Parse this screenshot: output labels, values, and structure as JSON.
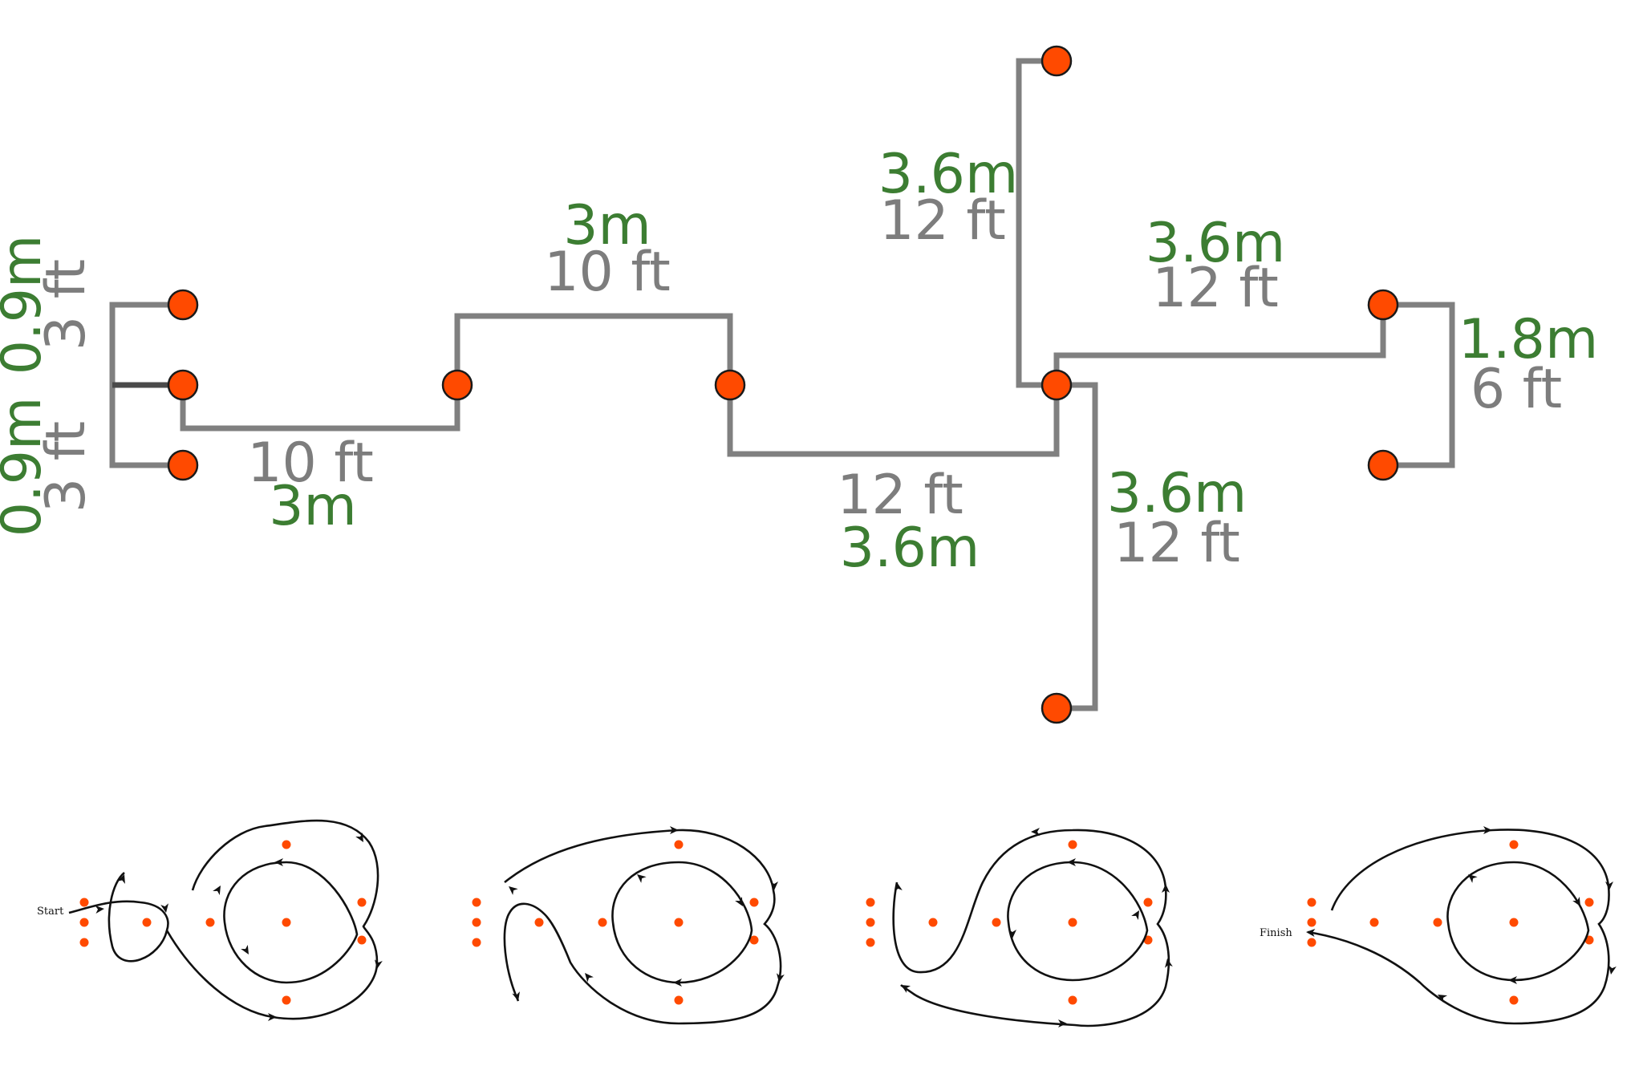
{
  "colors": {
    "metric": "#3c7d32",
    "imperial": "#7d7d7d",
    "cone": "#ff4a00",
    "connector": "#808080",
    "path": "#111111"
  },
  "layout_diagram": {
    "left_upper_gap": {
      "metric": "0.9m",
      "imperial": "3 ft"
    },
    "left_lower_gap": {
      "metric": "0.9m",
      "imperial": "3 ft"
    },
    "first_span": {
      "imperial": "10 ft",
      "metric": "3m"
    },
    "second_span": {
      "metric": "3m",
      "imperial": "10 ft"
    },
    "third_span": {
      "imperial": "12 ft",
      "metric": "3.6m"
    },
    "north_arm": {
      "metric": "3.6m",
      "imperial": "12 ft"
    },
    "east_arm": {
      "metric": "3.6m",
      "imperial": "12 ft"
    },
    "south_arm": {
      "metric": "3.6m",
      "imperial": "12 ft"
    },
    "right_pair_gap": {
      "metric": "1.8m",
      "imperial": "6 ft"
    }
  },
  "route_steps": {
    "start_label": "Start",
    "finish_label": "Finish"
  },
  "icons": {
    "cone": "cone-marker-icon",
    "arrow": "direction-arrow-icon"
  }
}
